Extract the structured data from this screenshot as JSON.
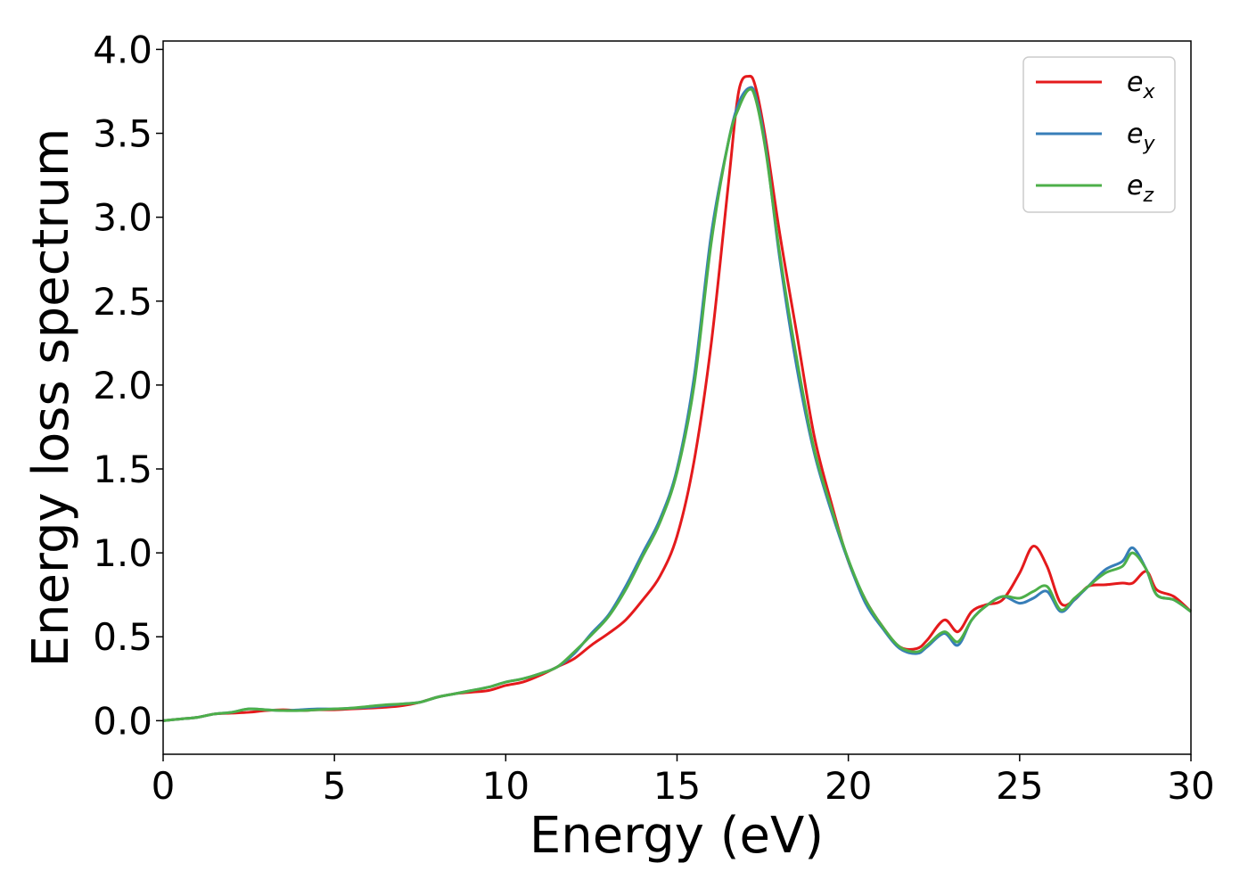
{
  "chart_data": {
    "type": "line",
    "xlabel": "Energy (eV)",
    "ylabel": "Energy loss spectrum",
    "xlim": [
      0,
      30
    ],
    "ylim": [
      -0.2,
      4.05
    ],
    "xticks": [
      "0",
      "5",
      "10",
      "15",
      "20",
      "25",
      "30"
    ],
    "yticks": [
      "0.0",
      "0.5",
      "1.0",
      "1.5",
      "2.0",
      "2.5",
      "3.0",
      "3.5",
      "4.0"
    ],
    "grid": false,
    "legend_position": "top-right",
    "series": [
      {
        "name": "e_x",
        "legend_base": "e",
        "legend_sub": "x",
        "color": "#e41a1c",
        "x": [
          0,
          0.5,
          1,
          1.5,
          2,
          2.5,
          3,
          3.5,
          4,
          4.5,
          5,
          5.5,
          6,
          6.5,
          7,
          7.5,
          8,
          8.5,
          9,
          9.5,
          10,
          10.5,
          11,
          11.5,
          12,
          12.5,
          13,
          13.5,
          14,
          14.5,
          15,
          15.5,
          16,
          16.5,
          16.8,
          17.1,
          17.3,
          17.6,
          18,
          18.5,
          19,
          19.5,
          20,
          20.5,
          21,
          21.5,
          22,
          22.3,
          22.8,
          23.2,
          23.6,
          24,
          24.5,
          25,
          25.4,
          25.8,
          26.2,
          26.6,
          27,
          27.5,
          28,
          28.3,
          28.7,
          29,
          29.5,
          30
        ],
        "y": [
          0.0,
          0.01,
          0.02,
          0.04,
          0.045,
          0.05,
          0.06,
          0.065,
          0.06,
          0.065,
          0.065,
          0.07,
          0.075,
          0.08,
          0.09,
          0.11,
          0.14,
          0.16,
          0.17,
          0.18,
          0.21,
          0.23,
          0.27,
          0.32,
          0.37,
          0.45,
          0.52,
          0.6,
          0.72,
          0.86,
          1.1,
          1.55,
          2.25,
          3.2,
          3.75,
          3.84,
          3.77,
          3.45,
          2.9,
          2.3,
          1.7,
          1.3,
          0.95,
          0.72,
          0.56,
          0.44,
          0.43,
          0.48,
          0.6,
          0.53,
          0.65,
          0.69,
          0.72,
          0.88,
          1.04,
          0.92,
          0.7,
          0.72,
          0.8,
          0.81,
          0.82,
          0.82,
          0.89,
          0.78,
          0.74,
          0.65
        ]
      },
      {
        "name": "e_y",
        "legend_base": "e",
        "legend_sub": "y",
        "color": "#377eb8",
        "x": [
          0,
          0.5,
          1,
          1.5,
          2,
          2.5,
          3,
          3.5,
          4,
          4.5,
          5,
          5.5,
          6,
          6.5,
          7,
          7.5,
          8,
          8.5,
          9,
          9.5,
          10,
          10.5,
          11,
          11.5,
          12,
          12.5,
          13,
          13.5,
          14,
          14.5,
          15,
          15.5,
          16,
          16.5,
          16.8,
          17.1,
          17.3,
          17.6,
          18,
          18.5,
          19,
          19.5,
          20,
          20.5,
          21,
          21.5,
          22,
          22.3,
          22.8,
          23.2,
          23.6,
          24,
          24.5,
          25,
          25.4,
          25.8,
          26.2,
          26.6,
          27,
          27.5,
          28,
          28.3,
          28.7,
          29,
          29.5,
          30
        ],
        "y": [
          0.0,
          0.01,
          0.02,
          0.04,
          0.05,
          0.07,
          0.065,
          0.06,
          0.065,
          0.07,
          0.07,
          0.075,
          0.08,
          0.09,
          0.1,
          0.11,
          0.14,
          0.16,
          0.18,
          0.2,
          0.23,
          0.25,
          0.28,
          0.32,
          0.4,
          0.52,
          0.63,
          0.8,
          1.0,
          1.2,
          1.5,
          2.05,
          2.9,
          3.45,
          3.68,
          3.77,
          3.72,
          3.4,
          2.75,
          2.1,
          1.6,
          1.25,
          0.95,
          0.7,
          0.55,
          0.43,
          0.4,
          0.44,
          0.52,
          0.45,
          0.6,
          0.68,
          0.74,
          0.7,
          0.73,
          0.77,
          0.65,
          0.72,
          0.8,
          0.9,
          0.95,
          1.03,
          0.9,
          0.75,
          0.72,
          0.65
        ]
      },
      {
        "name": "e_z",
        "legend_base": "e",
        "legend_sub": "z",
        "color": "#4daf4a",
        "x": [
          0,
          0.5,
          1,
          1.5,
          2,
          2.5,
          3,
          3.5,
          4,
          4.5,
          5,
          5.5,
          6,
          6.5,
          7,
          7.5,
          8,
          8.5,
          9,
          9.5,
          10,
          10.5,
          11,
          11.5,
          12,
          12.5,
          13,
          13.5,
          14,
          14.5,
          15,
          15.5,
          16,
          16.5,
          16.8,
          17.1,
          17.3,
          17.6,
          18,
          18.5,
          19,
          19.5,
          20,
          20.5,
          21,
          21.5,
          22,
          22.3,
          22.8,
          23.2,
          23.6,
          24,
          24.5,
          25,
          25.4,
          25.8,
          26.2,
          26.6,
          27,
          27.5,
          28,
          28.3,
          28.7,
          29,
          29.5,
          30
        ],
        "y": [
          0.0,
          0.01,
          0.02,
          0.04,
          0.05,
          0.07,
          0.065,
          0.06,
          0.06,
          0.065,
          0.07,
          0.075,
          0.085,
          0.095,
          0.1,
          0.11,
          0.14,
          0.16,
          0.18,
          0.2,
          0.23,
          0.25,
          0.28,
          0.32,
          0.41,
          0.51,
          0.62,
          0.78,
          0.98,
          1.18,
          1.48,
          2.0,
          2.85,
          3.45,
          3.65,
          3.76,
          3.7,
          3.38,
          2.78,
          2.15,
          1.62,
          1.27,
          0.96,
          0.72,
          0.56,
          0.44,
          0.41,
          0.45,
          0.53,
          0.47,
          0.6,
          0.68,
          0.74,
          0.73,
          0.77,
          0.8,
          0.66,
          0.73,
          0.8,
          0.88,
          0.92,
          1.0,
          0.9,
          0.75,
          0.72,
          0.65
        ]
      }
    ]
  }
}
